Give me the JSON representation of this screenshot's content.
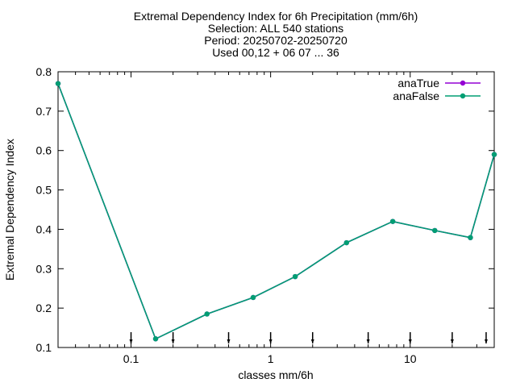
{
  "chart_data": {
    "type": "line",
    "title_lines": [
      "Extremal Dependency Index  for 6h Precipitation (mm/6h)",
      "Selection: ALL    540 stations",
      "Period: 20250702-20250720",
      "Used 00,12 + 06 07 ... 36"
    ],
    "xlabel": "classes mm/6h",
    "ylabel": "Extremal Dependency Index",
    "x_scale": "log",
    "xlim": [
      0.03,
      40
    ],
    "ylim": [
      0.1,
      0.8
    ],
    "x_ticks": [
      {
        "value": 0.1,
        "label": "0.1"
      },
      {
        "value": 1,
        "label": "1"
      },
      {
        "value": 10,
        "label": "10"
      }
    ],
    "y_ticks": [
      {
        "value": 0.1,
        "label": "0.1"
      },
      {
        "value": 0.2,
        "label": "0.2"
      },
      {
        "value": 0.3,
        "label": "0.3"
      },
      {
        "value": 0.4,
        "label": "0.4"
      },
      {
        "value": 0.5,
        "label": "0.5"
      },
      {
        "value": 0.6,
        "label": "0.6"
      },
      {
        "value": 0.7,
        "label": "0.7"
      },
      {
        "value": 0.8,
        "label": "0.8"
      }
    ],
    "class_thresholds": [
      0.1,
      0.2,
      0.5,
      1,
      2,
      5,
      10,
      20,
      35
    ],
    "grid": false,
    "legend_position": "top-right",
    "series": [
      {
        "name": "anaTrue",
        "color": "#9400d3",
        "x": [
          0.03,
          0.15,
          0.35,
          0.75,
          1.5,
          3.5,
          7.5,
          15,
          27,
          40
        ],
        "y": [
          0.77,
          0.122,
          0.185,
          0.227,
          0.28,
          0.366,
          0.42,
          0.397,
          0.379,
          0.59
        ]
      },
      {
        "name": "anaFalse",
        "color": "#009e73",
        "x": [
          0.03,
          0.15,
          0.35,
          0.75,
          1.5,
          3.5,
          7.5,
          15,
          27,
          40
        ],
        "y": [
          0.77,
          0.122,
          0.185,
          0.227,
          0.28,
          0.366,
          0.42,
          0.397,
          0.379,
          0.59
        ]
      }
    ]
  }
}
